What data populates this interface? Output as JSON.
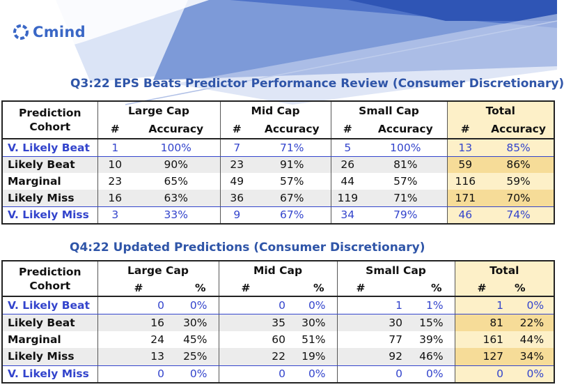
{
  "brand": {
    "name": "Cmind",
    "icon": "cmind-logo-icon"
  },
  "table1": {
    "title": "Q3:22 EPS Beats Predictor Performance Review (Consumer Discretionary)",
    "cohort_header_1": "Prediction",
    "cohort_header_2": "Cohort",
    "groups": [
      "Large Cap",
      "Mid Cap",
      "Small Cap",
      "Total"
    ],
    "sub_count": "#",
    "sub_metric": "Accuracy",
    "rows": [
      {
        "label": "V. Likely Beat",
        "cells": [
          "1",
          "100%",
          "7",
          "71%",
          "5",
          "100%",
          "13",
          "85%"
        ]
      },
      {
        "label": "Likely Beat",
        "cells": [
          "10",
          "90%",
          "23",
          "91%",
          "26",
          "81%",
          "59",
          "86%"
        ]
      },
      {
        "label": "Marginal",
        "cells": [
          "23",
          "65%",
          "49",
          "57%",
          "44",
          "57%",
          "116",
          "59%"
        ]
      },
      {
        "label": "Likely Miss",
        "cells": [
          "16",
          "63%",
          "36",
          "67%",
          "119",
          "71%",
          "171",
          "70%"
        ]
      },
      {
        "label": "V. Likely Miss",
        "cells": [
          "3",
          "33%",
          "9",
          "67%",
          "34",
          "79%",
          "46",
          "74%"
        ]
      }
    ]
  },
  "table2": {
    "title": "Q4:22 Updated Predictions (Consumer Discretionary)",
    "cohort_header_1": "Prediction",
    "cohort_header_2": "Cohort",
    "groups": [
      "Large Cap",
      "Mid Cap",
      "Small Cap",
      "Total"
    ],
    "sub_count": "#",
    "sub_metric": "%",
    "rows": [
      {
        "label": "V. Likely Beat",
        "cells": [
          "0",
          "0%",
          "0",
          "0%",
          "1",
          "1%",
          "1",
          "0%"
        ]
      },
      {
        "label": "Likely Beat",
        "cells": [
          "16",
          "30%",
          "35",
          "30%",
          "30",
          "15%",
          "81",
          "22%"
        ]
      },
      {
        "label": "Marginal",
        "cells": [
          "24",
          "45%",
          "60",
          "51%",
          "77",
          "39%",
          "161",
          "44%"
        ]
      },
      {
        "label": "Likely Miss",
        "cells": [
          "13",
          "25%",
          "22",
          "19%",
          "92",
          "46%",
          "127",
          "34%"
        ]
      },
      {
        "label": "V. Likely Miss",
        "cells": [
          "0",
          "0%",
          "0",
          "0%",
          "0",
          "0%",
          "0",
          "0%"
        ]
      }
    ]
  },
  "colors": {
    "accent_blue": "#3344cc",
    "title_blue": "#2f55a8",
    "total_fill": "#fdf0c8",
    "total_fill_dark": "#f9df9a"
  }
}
